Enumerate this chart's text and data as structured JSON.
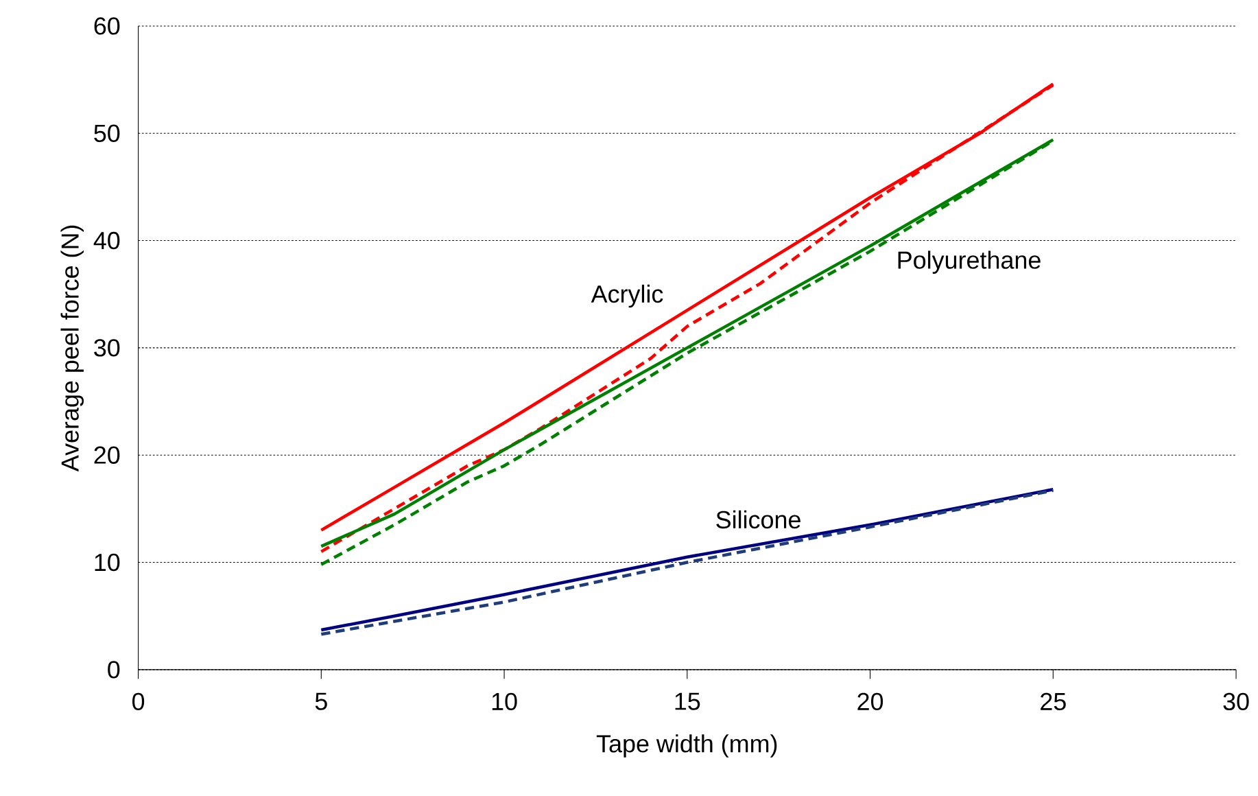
{
  "chart_data": {
    "type": "line",
    "xlabel": "Tape width (mm)",
    "ylabel": "Average peel force (N)",
    "xlim": [
      0,
      30
    ],
    "xticks": [
      0,
      5,
      10,
      15,
      20,
      25,
      30
    ],
    "ylim": [
      0,
      60
    ],
    "yticks": [
      0,
      10,
      20,
      30,
      40,
      50,
      60
    ],
    "grid": "y",
    "series": [
      {
        "name": "Acrylic",
        "color": "#ff0000",
        "line_style": "solid",
        "x": [
          5,
          7,
          9,
          10,
          15,
          20,
          23,
          25
        ],
        "values": [
          13,
          17,
          21,
          23,
          33.5,
          44,
          50,
          54.6
        ]
      },
      {
        "color": "#ff0000",
        "line_style": "dashed",
        "x": [
          5,
          7,
          9,
          10,
          11,
          14,
          15,
          17,
          20,
          25
        ],
        "values": [
          11,
          15,
          19,
          20.5,
          22.5,
          29,
          32,
          36,
          43.5,
          54.5
        ]
      },
      {
        "name": "Polyurethane",
        "color": "#008000",
        "line_style": "solid",
        "x": [
          5,
          7,
          10,
          15,
          20,
          25
        ],
        "values": [
          11.5,
          14.5,
          20.5,
          30,
          39.5,
          49.4
        ]
      },
      {
        "color": "#008000",
        "line_style": "dashed",
        "x": [
          5,
          7,
          9,
          10,
          11,
          15,
          20,
          25
        ],
        "values": [
          9.8,
          13.5,
          17.5,
          19,
          21,
          29.5,
          39,
          49.3
        ]
      },
      {
        "name": "Silicone",
        "color": "#000080",
        "line_style": "solid",
        "x": [
          5,
          7,
          10,
          11,
          15,
          20,
          25
        ],
        "values": [
          3.7,
          5,
          7,
          7.7,
          10.5,
          13.5,
          16.8
        ]
      },
      {
        "color": "#1f3d7a",
        "line_style": "dashed",
        "x": [
          5,
          7,
          10,
          15,
          20,
          25
        ],
        "values": [
          3.3,
          4.5,
          6.3,
          10,
          13.3,
          16.7
        ]
      }
    ]
  }
}
